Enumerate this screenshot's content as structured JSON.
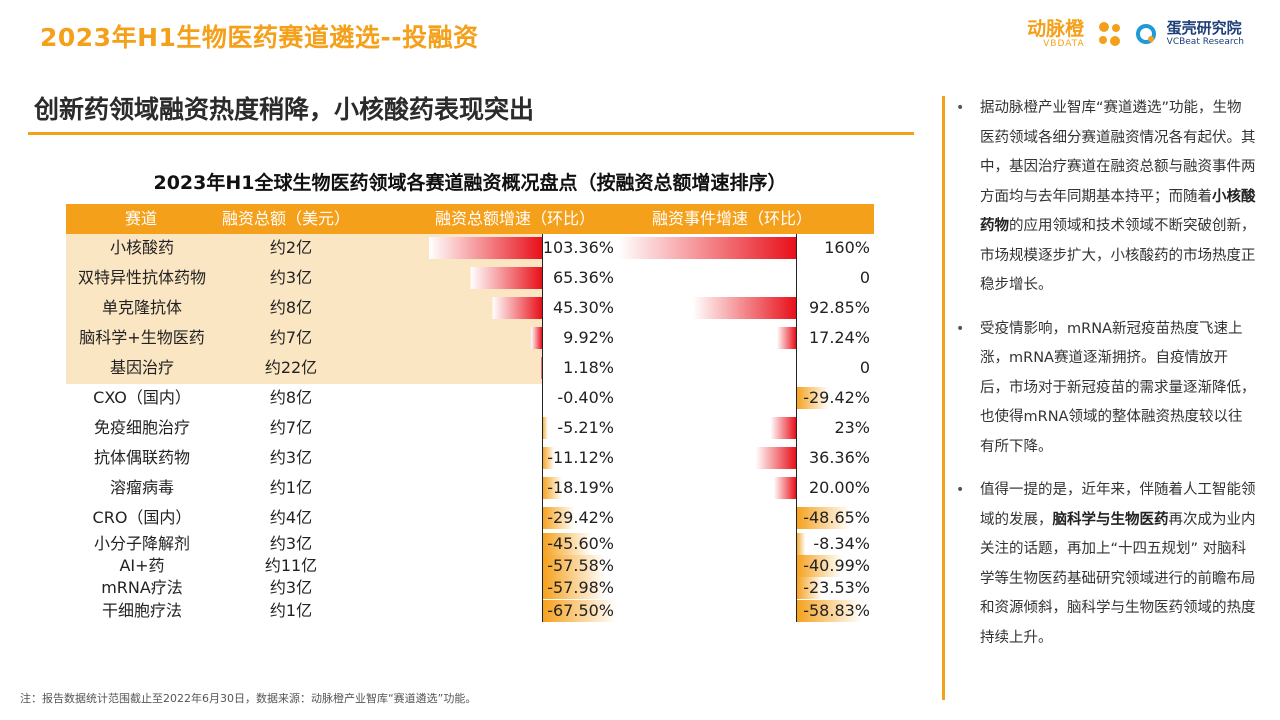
{
  "header": {
    "title": "2023年H1生物医药赛道遴选--投融资",
    "logo_dm_name": "动脉橙",
    "logo_dm_sub": "VBDATA",
    "logo_dk_name": "蛋壳研究院",
    "logo_dk_sub": "VCBeat Research"
  },
  "section": {
    "title": "创新药领域融资热度稍降，小核酸药表现突出"
  },
  "colors": {
    "accent": "#f5a01a",
    "band": "#fbe6c3",
    "bar_red": "#e8101a",
    "bar_orange": "#f5a01a"
  },
  "chart_data": {
    "type": "table",
    "title": "2023年H1全球生物医药领域各赛道融资概况盘点（按融资总额增速排序）",
    "columns": [
      "赛道",
      "融资总额（美元）",
      "融资总额增速（环比）",
      "融资事件增速（环比）"
    ],
    "rows": [
      {
        "track": "小核酸药",
        "amount": "约2亿",
        "amount_growth": 103.36,
        "amount_growth_label": "103.36%",
        "event_growth": 160,
        "event_growth_label": "160%"
      },
      {
        "track": "双特异性抗体药物",
        "amount": "约3亿",
        "amount_growth": 65.36,
        "amount_growth_label": "65.36%",
        "event_growth": 0,
        "event_growth_label": "0"
      },
      {
        "track": "单克隆抗体",
        "amount": "约8亿",
        "amount_growth": 45.3,
        "amount_growth_label": "45.30%",
        "event_growth": 92.85,
        "event_growth_label": "92.85%"
      },
      {
        "track": "脑科学+生物医药",
        "amount": "约7亿",
        "amount_growth": 9.92,
        "amount_growth_label": "9.92%",
        "event_growth": 17.24,
        "event_growth_label": "17.24%"
      },
      {
        "track": "基因治疗",
        "amount": "约22亿",
        "amount_growth": 1.18,
        "amount_growth_label": "1.18%",
        "event_growth": 0,
        "event_growth_label": "0"
      },
      {
        "track": "CXO（国内）",
        "amount": "约8亿",
        "amount_growth": -0.4,
        "amount_growth_label": "-0.40%",
        "event_growth": -29.42,
        "event_growth_label": "-29.42%"
      },
      {
        "track": "免疫细胞治疗",
        "amount": "约7亿",
        "amount_growth": -5.21,
        "amount_growth_label": "-5.21%",
        "event_growth": 23,
        "event_growth_label": "23%"
      },
      {
        "track": "抗体偶联药物",
        "amount": "约3亿",
        "amount_growth": -11.12,
        "amount_growth_label": "-11.12%",
        "event_growth": 36.36,
        "event_growth_label": "36.36%"
      },
      {
        "track": "溶瘤病毒",
        "amount": "约1亿",
        "amount_growth": -18.19,
        "amount_growth_label": "-18.19%",
        "event_growth": 20.0,
        "event_growth_label": "20.00%"
      },
      {
        "track": "CRO（国内）",
        "amount": "约4亿",
        "amount_growth": -29.42,
        "amount_growth_label": "-29.42%",
        "event_growth": -48.65,
        "event_growth_label": "-48.65%"
      },
      {
        "track": "小分子降解剂",
        "amount": "约3亿",
        "amount_growth": -45.6,
        "amount_growth_label": "-45.60%",
        "event_growth": -8.34,
        "event_growth_label": "-8.34%"
      },
      {
        "track": "AI+药",
        "amount": "约11亿",
        "amount_growth": -57.58,
        "amount_growth_label": "-57.58%",
        "event_growth": -40.99,
        "event_growth_label": "-40.99%"
      },
      {
        "track": "mRNA疗法",
        "amount": "约3亿",
        "amount_growth": -57.98,
        "amount_growth_label": "-57.98%",
        "event_growth": -23.53,
        "event_growth_label": "-23.53%"
      },
      {
        "track": "干细胞疗法",
        "amount": "约1亿",
        "amount_growth": -67.5,
        "amount_growth_label": "-67.50%",
        "event_growth": -58.83,
        "event_growth_label": "-58.83%"
      }
    ]
  },
  "footnote": "注：报告数据统计范围截止至2022年6月30日，数据来源：动脉橙产业智库“赛道遴选”功能。",
  "bullets": [
    {
      "parts": [
        {
          "text": "据动脉橙产业智库“赛道遴选”功能，生物医药领域各细分赛道融资情况各有起伏。其中，基因治疗赛道在融资总额与融资事件两方面均与去年同期基本持平；而随着",
          "bold": false
        },
        {
          "text": "小核酸药物",
          "bold": true
        },
        {
          "text": "的应用领域和技术领域不断突破创新，市场规模逐步扩大，小核酸药的市场热度正稳步增长。",
          "bold": false
        }
      ]
    },
    {
      "parts": [
        {
          "text": "受疫情影响，mRNA新冠疫苗热度飞速上涨，mRNA赛道逐渐拥挤。自疫情放开后，市场对于新冠疫苗的需求量逐渐降低，也使得mRNA领域的整体融资热度较以往有所下降。",
          "bold": false
        }
      ]
    },
    {
      "parts": [
        {
          "text": "值得一提的是，近年来，伴随着人工智能领域的发展，",
          "bold": false
        },
        {
          "text": "脑科学与生物医药",
          "bold": true
        },
        {
          "text": "再次成为业内关注的话题，再加上“十四五规划” 对脑科学等生物医药基础研究领域进行的前瞻布局和资源倾斜，脑科学与生物医药领域的热度持续上升。",
          "bold": false
        }
      ]
    }
  ]
}
